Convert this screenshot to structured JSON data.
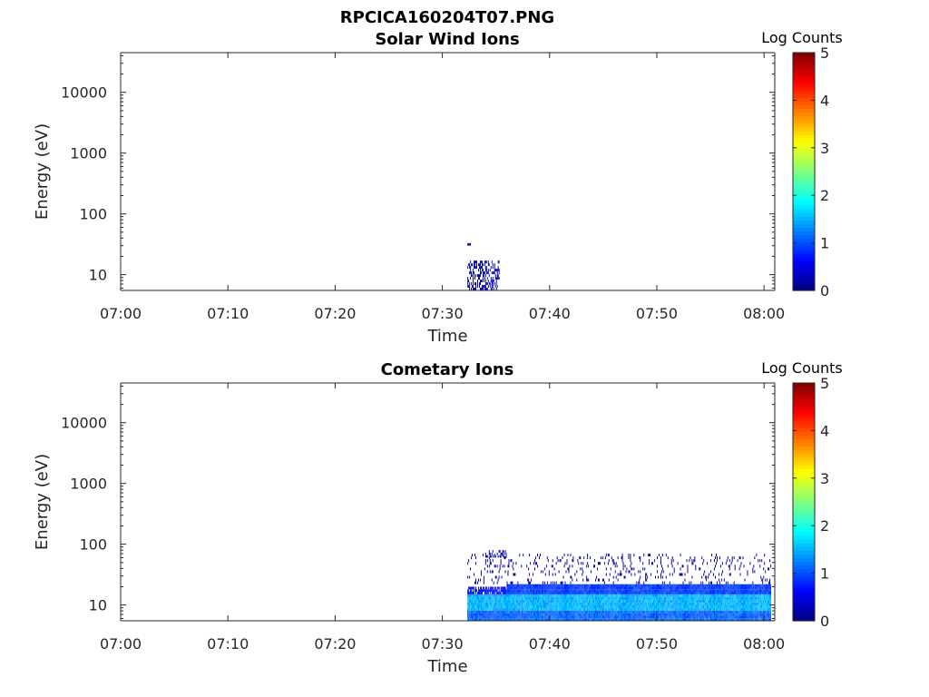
{
  "figure_title": "RPCICA160204T07.PNG",
  "chart_data": [
    {
      "type": "heatmap",
      "title": "Solar Wind Ions",
      "xlabel": "Time",
      "ylabel": "Energy (eV)",
      "x_ticks": [
        "07:00",
        "07:10",
        "07:20",
        "07:30",
        "07:40",
        "07:50",
        "08:00"
      ],
      "xlim": [
        "07:00",
        "08:01"
      ],
      "y_scale": "log",
      "y_ticks": [
        "10",
        "100",
        "1000",
        "10000"
      ],
      "ylim": [
        5.5,
        45000
      ],
      "colorbar": {
        "title": "Log Counts",
        "ticks": [
          "0",
          "1",
          "2",
          "3",
          "4",
          "5"
        ],
        "range": [
          0,
          5
        ],
        "colormap": "jet"
      },
      "cells": [
        {
          "t_start": "07:32:20",
          "t_end": "07:35:20",
          "e_low": 5.5,
          "e_high": 17,
          "log_counts": 0.2,
          "density": 0.45
        },
        {
          "t_start": "07:32:20",
          "t_end": "07:32:40",
          "e_low": 30,
          "e_high": 33,
          "log_counts": 0.2,
          "density": 1.0
        }
      ]
    },
    {
      "type": "heatmap",
      "title": "Cometary Ions",
      "xlabel": "Time",
      "ylabel": "Energy (eV)",
      "x_ticks": [
        "07:00",
        "07:10",
        "07:20",
        "07:30",
        "07:40",
        "07:50",
        "08:00"
      ],
      "xlim": [
        "07:00",
        "08:01"
      ],
      "y_scale": "log",
      "y_ticks": [
        "10",
        "100",
        "1000",
        "10000"
      ],
      "ylim": [
        5.5,
        45000
      ],
      "colorbar": {
        "title": "Log Counts",
        "ticks": [
          "0",
          "1",
          "2",
          "3",
          "4",
          "5"
        ],
        "range": [
          0,
          5
        ],
        "colormap": "jet"
      },
      "cells": [
        {
          "t_start": "07:32:20",
          "t_end": "08:00:40",
          "e_low": 5.5,
          "e_high": 8,
          "log_counts": 1.1,
          "density": 1.0
        },
        {
          "t_start": "07:32:20",
          "t_end": "08:00:40",
          "e_low": 8,
          "e_high": 15,
          "log_counts": 1.5,
          "density": 1.0
        },
        {
          "t_start": "07:36:00",
          "t_end": "08:00:40",
          "e_low": 15,
          "e_high": 22,
          "log_counts": 0.9,
          "density": 1.0
        },
        {
          "t_start": "07:32:20",
          "t_end": "07:36:00",
          "e_low": 15,
          "e_high": 20,
          "log_counts": 0.6,
          "density": 0.8
        },
        {
          "t_start": "07:32:20",
          "t_end": "08:00:40",
          "e_low": 22,
          "e_high": 70,
          "log_counts": 0.15,
          "density": 0.12
        },
        {
          "t_start": "07:34:00",
          "t_end": "07:36:00",
          "e_low": 60,
          "e_high": 80,
          "log_counts": 0.15,
          "density": 0.5
        }
      ]
    }
  ]
}
